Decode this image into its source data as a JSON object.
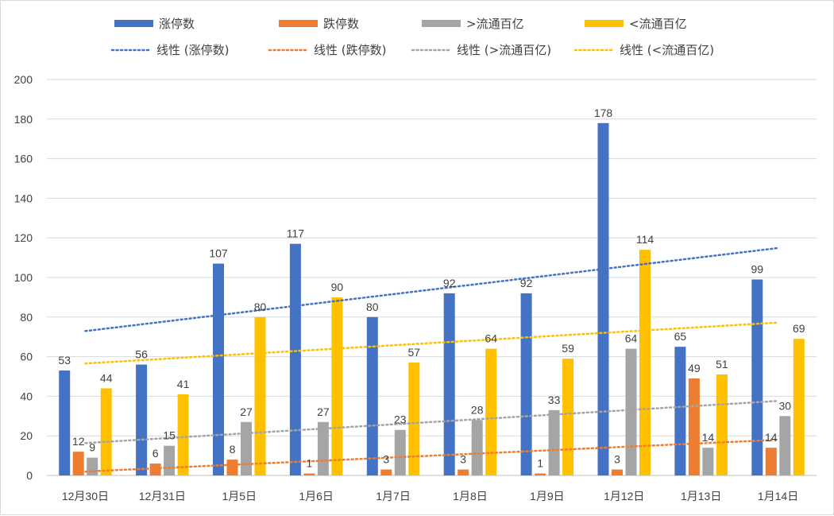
{
  "chart_data": {
    "type": "bar",
    "categories": [
      "12月30日",
      "12月31日",
      "1月5日",
      "1月6日",
      "1月7日",
      "1月8日",
      "1月9日",
      "1月12日",
      "1月13日",
      "1月14日"
    ],
    "series": [
      {
        "name": "涨停数",
        "color": "#4472c4",
        "values": [
          53,
          56,
          107,
          117,
          80,
          92,
          92,
          178,
          65,
          99
        ]
      },
      {
        "name": "跌停数",
        "color": "#ed7d31",
        "values": [
          12,
          6,
          8,
          1,
          3,
          3,
          1,
          3,
          49,
          14
        ]
      },
      {
        "name": ">流通百亿",
        "color": "#a5a5a5",
        "values": [
          9,
          15,
          27,
          27,
          23,
          28,
          33,
          64,
          14,
          30
        ]
      },
      {
        "name": "<流通百亿",
        "color": "#ffc000",
        "values": [
          44,
          41,
          80,
          90,
          57,
          64,
          59,
          114,
          51,
          69
        ]
      }
    ],
    "trendlines": [
      {
        "name": "线性 (涨停数)",
        "series_index": 0,
        "color": "#4472c4"
      },
      {
        "name": "线性 (跌停数)",
        "series_index": 1,
        "color": "#ed7d31"
      },
      {
        "name": "线性 (>流通百亿)",
        "series_index": 2,
        "color": "#a5a5a5"
      },
      {
        "name": "线性 (<流通百亿)",
        "series_index": 3,
        "color": "#ffc000"
      }
    ],
    "ylim": [
      0,
      200
    ],
    "yticks": [
      0,
      20,
      40,
      60,
      80,
      100,
      120,
      140,
      160,
      180,
      200
    ],
    "grid": true,
    "legend_position": "top",
    "xlabel": "",
    "ylabel": "",
    "title": ""
  }
}
